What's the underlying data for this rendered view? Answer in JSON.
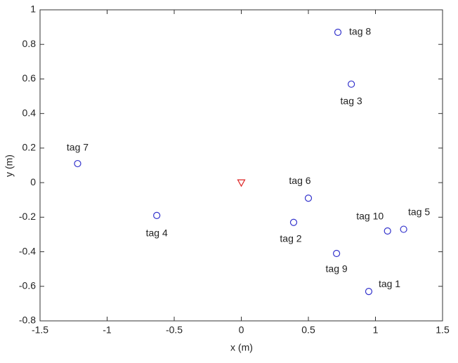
{
  "chart_data": {
    "type": "scatter",
    "xlabel": "x (m)",
    "ylabel": "y (m)",
    "xlim": [
      -1.5,
      1.5
    ],
    "xticks": [
      -1.5,
      -1,
      -0.5,
      0,
      0.5,
      1,
      1.5
    ],
    "ylim": [
      -0.8,
      1
    ],
    "yticks": [
      -0.8,
      -0.6,
      -0.4,
      -0.2,
      0,
      0.2,
      0.4,
      0.6,
      0.8,
      1
    ],
    "grid": false,
    "series": [
      {
        "color": "#3333cc",
        "marker": "circle",
        "x": [
          0.72,
          0.82,
          -1.22,
          -0.63,
          0.5,
          0.39,
          1.09,
          1.21,
          0.71,
          0.95
        ],
        "y": [
          0.87,
          0.57,
          0.11,
          -0.19,
          -0.09,
          -0.23,
          -0.28,
          -0.27,
          -0.41,
          -0.63
        ],
        "labels": [
          "tag 8",
          "tag 3",
          "tag 7",
          "tag 4",
          "tag 6",
          "tag 2",
          "tag 10",
          "tag 5",
          "tag 9",
          "tag 1"
        ]
      },
      {
        "color": "#dd2222",
        "marker": "triangle-down",
        "x": [
          0
        ],
        "y": [
          0
        ]
      }
    ]
  }
}
